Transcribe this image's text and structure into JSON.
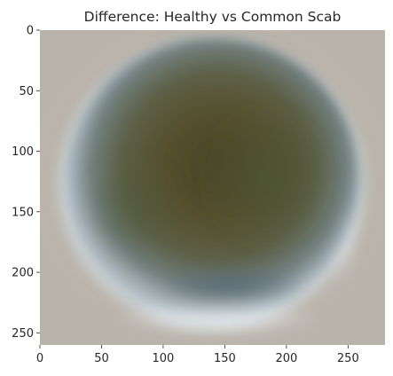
{
  "chart_data": {
    "type": "heatmap",
    "title": "Difference: Healthy vs Common Scab",
    "xlabel": "",
    "ylabel": "",
    "xlim": [
      0,
      280
    ],
    "ylim": [
      260,
      0
    ],
    "x_ticks": [
      0,
      50,
      100,
      150,
      200,
      250
    ],
    "y_ticks": [
      0,
      50,
      100,
      150,
      200,
      250
    ],
    "grid": false,
    "image": {
      "description": "mean difference image",
      "colors": {
        "background": "#b8b3ab",
        "ring": "#b4c4cf",
        "ring_highlight": "#dfe6ea",
        "interior": "#5c5a3f",
        "interior_dark": "#4b4428",
        "interior_green": "#4a5534",
        "lower_rim": "#55687a"
      }
    }
  }
}
